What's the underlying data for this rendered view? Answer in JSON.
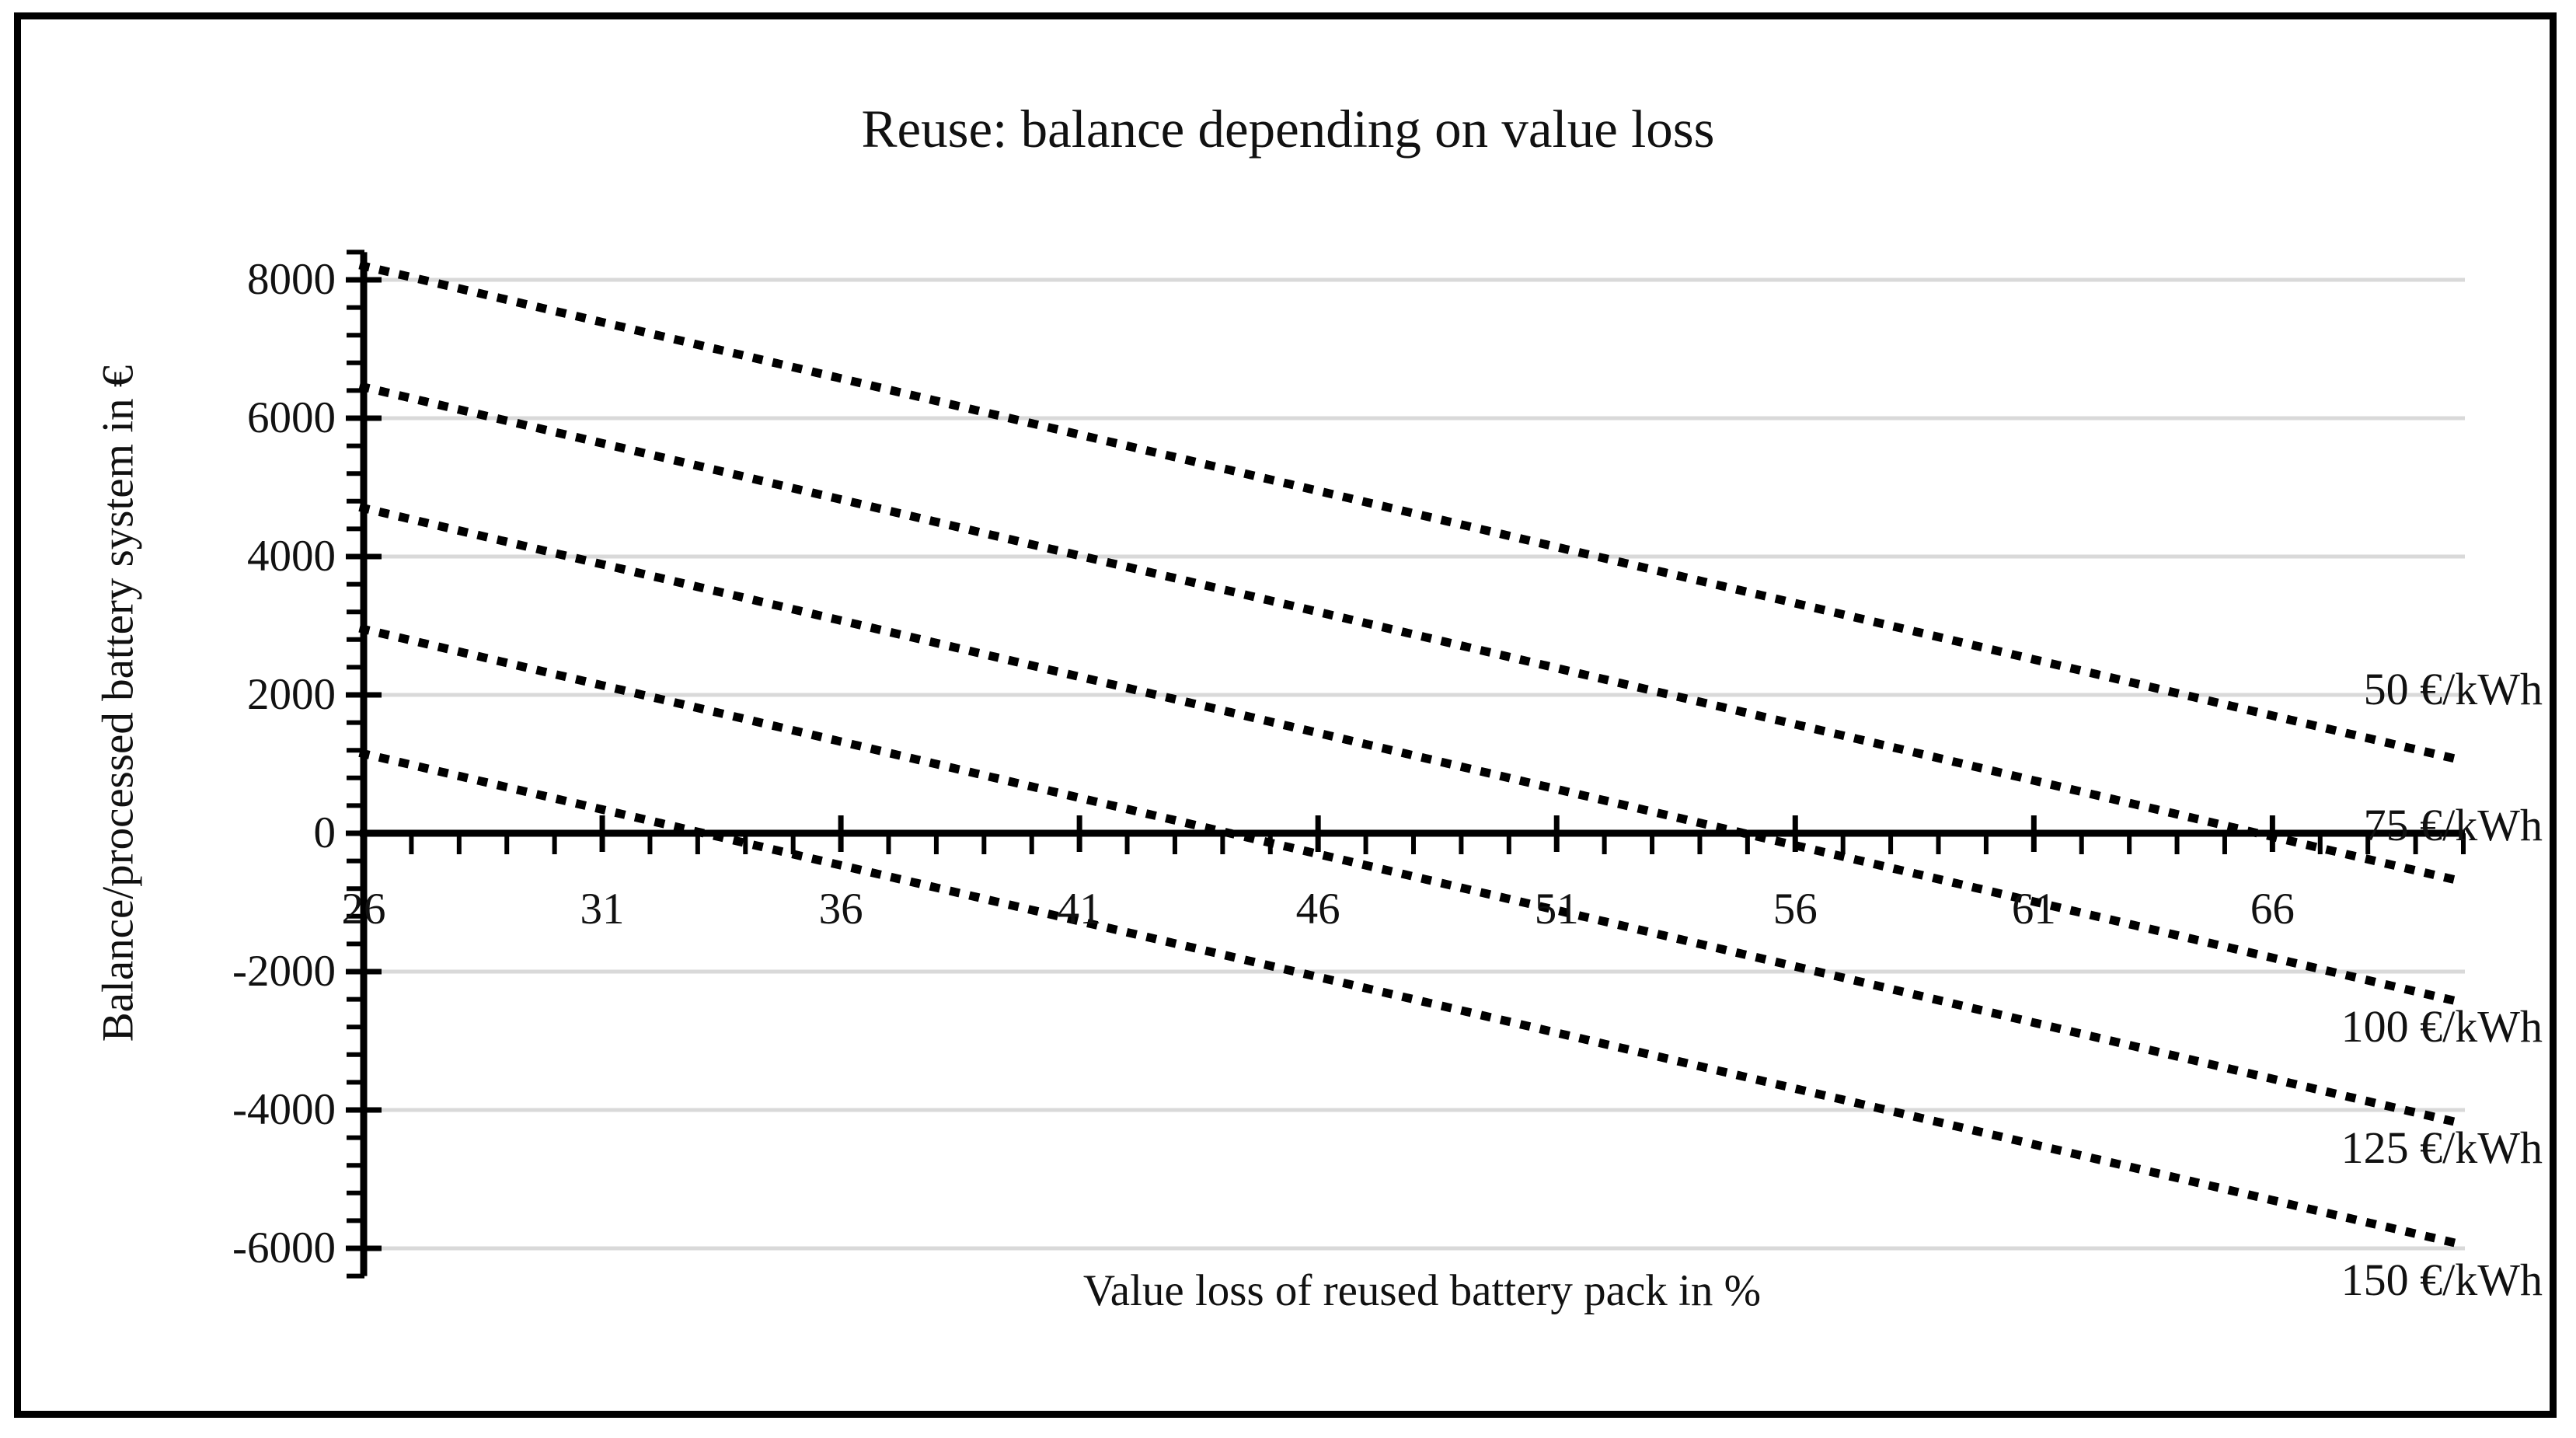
{
  "figure": {
    "background": "#ffffff",
    "border_color": "#000000",
    "text_color": "#111111",
    "gridline_color": "#d9d9d9",
    "line_color": "#000000"
  },
  "chart_data": {
    "type": "line",
    "line_style": "dotted",
    "title": "Reuse: balance depending on value loss",
    "xlabel": "Value loss of reused battery pack in %",
    "ylabel": "Balance/processed battery system in €",
    "xlim": [
      26,
      70
    ],
    "ylim": [
      -6400,
      8400
    ],
    "x_major_ticks": [
      26,
      31,
      36,
      41,
      46,
      51,
      56,
      61,
      66
    ],
    "x_minor_step": 1,
    "y_major_ticks": [
      8000,
      6000,
      4000,
      2000,
      0,
      -2000,
      -4000,
      -6000
    ],
    "y_minor_step": 400,
    "grid": "horizontal-major-only",
    "legend_position": "inline-labels-right",
    "series": [
      {
        "name": "50 €/kWh",
        "price_eur_per_kwh": 50,
        "x": [
          26,
          70
        ],
        "y": [
          8200,
          1050
        ],
        "zero_crossing_x": null,
        "label_anchor_value": 2080
      },
      {
        "name": "75 €/kWh",
        "price_eur_per_kwh": 75,
        "x": [
          26,
          70
        ],
        "y": [
          6450,
          -700
        ],
        "zero_crossing_x": 65.7,
        "label_anchor_value": 110
      },
      {
        "name": "100 €/kWh",
        "price_eur_per_kwh": 100,
        "x": [
          26,
          70
        ],
        "y": [
          4700,
          -2450
        ],
        "zero_crossing_x": 54.9,
        "label_anchor_value": -2800
      },
      {
        "name": "125 €/kWh",
        "price_eur_per_kwh": 125,
        "x": [
          26,
          70
        ],
        "y": [
          2950,
          -4200
        ],
        "zero_crossing_x": 44.2,
        "label_anchor_value": -4550
      },
      {
        "name": "150 €/kWh",
        "price_eur_per_kwh": 150,
        "x": [
          26,
          70
        ],
        "y": [
          1150,
          -5950
        ],
        "zero_crossing_x": 33.1,
        "label_anchor_value": -6460
      }
    ]
  }
}
